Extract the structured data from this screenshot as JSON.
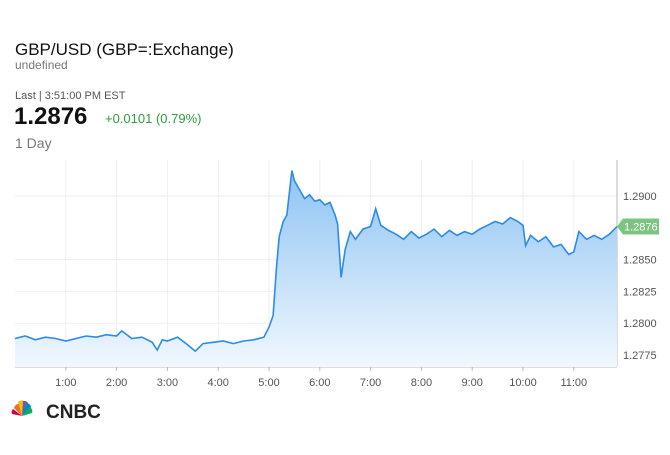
{
  "quote": {
    "title": "GBP/USD (GBP=:Exchange)",
    "subtitle": "undefined",
    "last_time": "Last | 3:51:00 PM EST",
    "price": "1.2876",
    "change": "+0.0101 (0.79%)",
    "period": "1 Day"
  },
  "logo": "CNBC",
  "chart_data": {
    "type": "line",
    "color": "#2b8ce6",
    "x": [
      0,
      0.2,
      0.4,
      0.6,
      0.8,
      1.0,
      1.2,
      1.4,
      1.6,
      1.8,
      2.0,
      2.1,
      2.3,
      2.5,
      2.7,
      2.8,
      2.9,
      3.0,
      3.2,
      3.4,
      3.55,
      3.7,
      3.9,
      4.1,
      4.3,
      4.5,
      4.7,
      4.9,
      5.0,
      5.08,
      5.15,
      5.2,
      5.28,
      5.35,
      5.45,
      5.5,
      5.6,
      5.7,
      5.8,
      5.9,
      6.0,
      6.1,
      6.2,
      6.3,
      6.35,
      6.42,
      6.5,
      6.6,
      6.7,
      6.85,
      7.0,
      7.1,
      7.2,
      7.35,
      7.5,
      7.65,
      7.8,
      7.95,
      8.1,
      8.25,
      8.4,
      8.55,
      8.7,
      8.85,
      9.0,
      9.15,
      9.3,
      9.45,
      9.6,
      9.75,
      9.9,
      10.0,
      10.05,
      10.15,
      10.3,
      10.45,
      10.6,
      10.75,
      10.9,
      11.0,
      11.1,
      11.25,
      11.4,
      11.55,
      11.7,
      11.85
    ],
    "values": [
      1.2788,
      1.279,
      1.2787,
      1.2789,
      1.2788,
      1.2786,
      1.2788,
      1.279,
      1.2789,
      1.2791,
      1.279,
      1.2794,
      1.2788,
      1.2789,
      1.2785,
      1.2779,
      1.2787,
      1.2786,
      1.2789,
      1.2783,
      1.2778,
      1.2784,
      1.2785,
      1.2786,
      1.2784,
      1.2786,
      1.2787,
      1.2789,
      1.2797,
      1.2806,
      1.2845,
      1.2868,
      1.288,
      1.2885,
      1.292,
      1.2912,
      1.2905,
      1.2898,
      1.2901,
      1.2896,
      1.2897,
      1.2893,
      1.2895,
      1.2885,
      1.2878,
      1.2836,
      1.2858,
      1.2872,
      1.2866,
      1.2874,
      1.2876,
      1.289,
      1.2877,
      1.2873,
      1.287,
      1.2866,
      1.2872,
      1.2867,
      1.287,
      1.2874,
      1.2868,
      1.2873,
      1.2869,
      1.2872,
      1.287,
      1.2874,
      1.2877,
      1.288,
      1.2878,
      1.2883,
      1.288,
      1.2877,
      1.2861,
      1.2869,
      1.2864,
      1.2868,
      1.286,
      1.2862,
      1.2854,
      1.2856,
      1.2872,
      1.2866,
      1.2869,
      1.2866,
      1.287,
      1.2876
    ],
    "xlim": [
      0,
      11.85
    ],
    "ylim": [
      1.27656,
      1.29283
    ],
    "xticks": [
      {
        "value": 1,
        "label": "1:00"
      },
      {
        "value": 2,
        "label": "2:00"
      },
      {
        "value": 3,
        "label": "3:00"
      },
      {
        "value": 4,
        "label": "4:00"
      },
      {
        "value": 5,
        "label": "5:00"
      },
      {
        "value": 6,
        "label": "6:00"
      },
      {
        "value": 7,
        "label": "7:00"
      },
      {
        "value": 8,
        "label": "8:00"
      },
      {
        "value": 9,
        "label": "9:00"
      },
      {
        "value": 10,
        "label": "10:00"
      },
      {
        "value": 11,
        "label": "11:00"
      }
    ],
    "yticks": [
      1.2775,
      {
        "value": 1.28,
        "label": "1.2800"
      },
      1.2825,
      {
        "value": 1.285,
        "label": "1.2850"
      },
      {
        "value": 1.29,
        "label": "1.2900"
      }
    ],
    "grid": true
  }
}
